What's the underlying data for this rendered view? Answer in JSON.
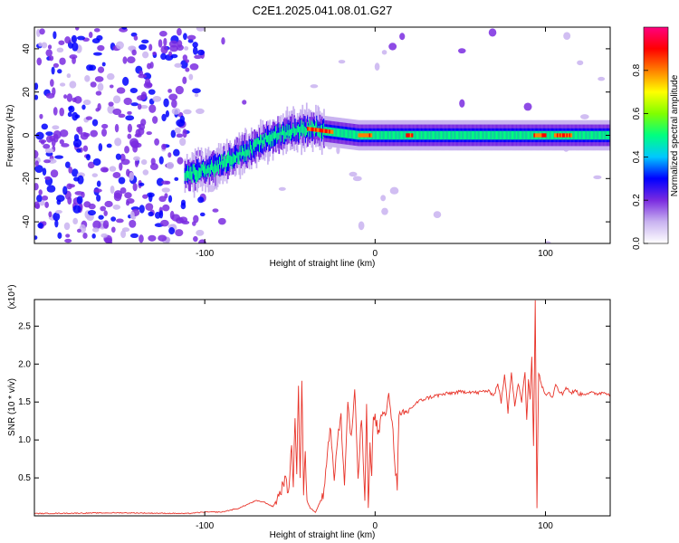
{
  "chart_data": [
    {
      "type": "heatmap",
      "title": "C2E1.2025.041.08.01.G27",
      "xlabel": "Height of straight line (km)",
      "ylabel": "Frequency (Hz)",
      "xlim": [
        -200,
        138
      ],
      "ylim": [
        -50,
        50
      ],
      "xticks": [
        {
          "value": -100,
          "label": "-100"
        },
        {
          "value": 0,
          "label": "0"
        },
        {
          "value": 100,
          "label": "100"
        }
      ],
      "yticks": [
        {
          "value": -40,
          "label": "-40"
        },
        {
          "value": -20,
          "label": "-20"
        },
        {
          "value": 0,
          "label": "0"
        },
        {
          "value": 20,
          "label": "20"
        },
        {
          "value": 40,
          "label": "40"
        }
      ],
      "colorbar": {
        "label": "Normalized spectral amplitude",
        "range": [
          0,
          1
        ],
        "ticks": [
          {
            "value": 0.0,
            "label": "0.0"
          },
          {
            "value": 0.2,
            "label": "0.2"
          },
          {
            "value": 0.4,
            "label": "0.4"
          },
          {
            "value": 0.6,
            "label": "0.6"
          },
          {
            "value": 0.8,
            "label": "0.8"
          }
        ],
        "colors": [
          "#ffffff",
          "#c9b3f0",
          "#7a2be0",
          "#0000ff",
          "#00c8ff",
          "#00ff80",
          "#80ff00",
          "#ffff00",
          "#ff8000",
          "#ff0000",
          "#ff0080"
        ]
      },
      "ridge": {
        "x": [
          -110,
          -100,
          -90,
          -80,
          -70,
          -60,
          -50,
          -40,
          -30,
          -20,
          -10,
          0,
          10,
          20,
          40,
          60,
          80,
          90,
          100,
          110,
          120,
          138
        ],
        "freq_hz": [
          -18,
          -16,
          -13,
          -9,
          -5,
          0,
          2,
          3,
          2,
          1,
          0,
          0,
          0,
          0,
          0,
          0,
          0,
          0,
          0,
          0,
          0,
          0
        ]
      },
      "peak_segments": [
        [
          -40,
          -25
        ],
        [
          -10,
          -2
        ],
        [
          18,
          22
        ],
        [
          93,
          100
        ],
        [
          105,
          115
        ]
      ]
    },
    {
      "type": "line",
      "xlabel": "Height of straight line (km)",
      "ylabel": "SNR (10 * v/v)",
      "yscale_label": "(x10⁴)",
      "xlim": [
        -200,
        138
      ],
      "ylim": [
        0,
        2.85
      ],
      "xticks": [
        {
          "value": -100,
          "label": "-100"
        },
        {
          "value": 0,
          "label": "0"
        },
        {
          "value": 100,
          "label": "100"
        }
      ],
      "yticks": [
        {
          "value": 0.5,
          "label": "0.5"
        },
        {
          "value": 1.0,
          "label": "1.0"
        },
        {
          "value": 1.5,
          "label": "1.5"
        },
        {
          "value": 2.0,
          "label": "2.0"
        },
        {
          "value": 2.5,
          "label": "2.5"
        }
      ],
      "series": [
        {
          "name": "SNR",
          "color": "#e8342a",
          "x": [
            -200,
            -150,
            -110,
            -100,
            -90,
            -80,
            -75,
            -70,
            -65,
            -60,
            -57,
            -55,
            -53,
            -51,
            -49,
            -48,
            -47,
            -46,
            -45,
            -44,
            -43,
            -42,
            -41,
            -40,
            -38,
            -35,
            -33,
            -30,
            -28,
            -26,
            -24,
            -22,
            -20,
            -18,
            -16,
            -14,
            -12,
            -10,
            -8,
            -6,
            -5,
            -4,
            -3,
            -2,
            -1,
            0,
            2,
            4,
            6,
            8,
            10,
            12,
            13,
            14,
            15,
            18,
            20,
            25,
            30,
            35,
            40,
            45,
            50,
            55,
            60,
            65,
            70,
            72,
            74,
            76,
            78,
            80,
            82,
            84,
            86,
            88,
            89,
            90,
            91,
            92,
            93,
            94,
            95,
            96,
            98,
            100,
            102,
            104,
            106,
            108,
            110,
            112,
            115,
            118,
            120,
            125,
            130,
            135,
            138
          ],
          "y": [
            0.03,
            0.04,
            0.03,
            0.05,
            0.05,
            0.1,
            0.15,
            0.2,
            0.18,
            0.12,
            0.25,
            0.35,
            0.5,
            0.3,
            0.9,
            0.4,
            1.35,
            0.6,
            1.7,
            0.5,
            1.78,
            0.3,
            0.8,
            0.2,
            0.1,
            0.05,
            0.15,
            0.3,
            0.9,
            1.15,
            0.5,
            1.0,
            1.3,
            0.4,
            1.5,
            1.0,
            1.65,
            0.5,
            1.3,
            0.2,
            1.45,
            0.1,
            0.9,
            0.6,
            1.3,
            1.3,
            1.1,
            1.35,
            1.3,
            1.6,
            1.25,
            0.6,
            0.4,
            1.3,
            1.3,
            1.35,
            1.4,
            1.5,
            1.55,
            1.58,
            1.6,
            1.62,
            1.63,
            1.64,
            1.62,
            1.65,
            1.6,
            1.75,
            1.5,
            1.85,
            1.4,
            1.9,
            1.45,
            1.75,
            1.5,
            1.9,
            1.2,
            1.8,
            1.55,
            2.1,
            0.95,
            2.85,
            0.1,
            1.9,
            1.7,
            1.6,
            1.65,
            1.55,
            1.75,
            1.65,
            1.6,
            1.7,
            1.62,
            1.65,
            1.6,
            1.62,
            1.61,
            1.63,
            1.6
          ]
        }
      ]
    }
  ]
}
